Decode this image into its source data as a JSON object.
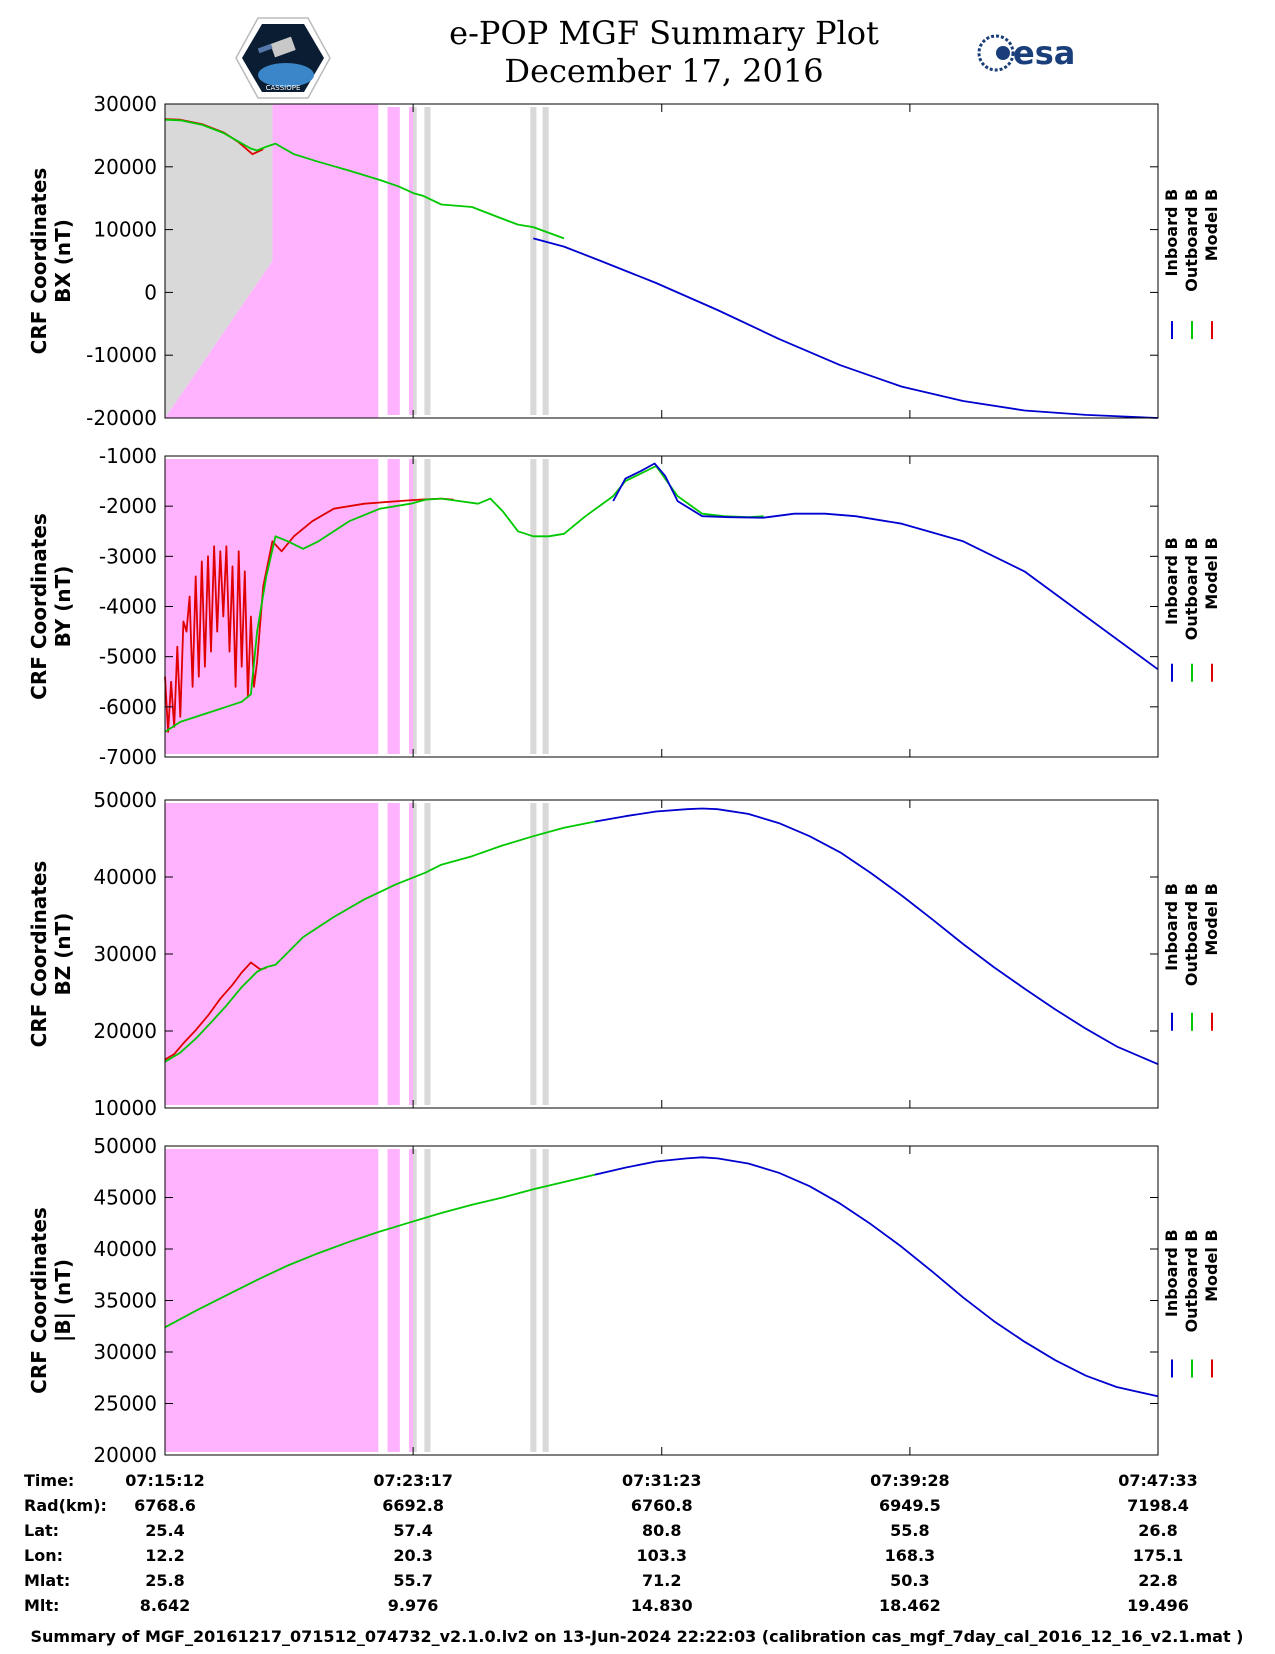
{
  "header": {
    "title_line1": "e-POP MGF Summary Plot",
    "title_line2": "December 17, 2016",
    "logo_left": "CASSIOPE",
    "logo_right": "esa"
  },
  "colors": {
    "inboard": "#0000d0",
    "outboard": "#00c800",
    "model": "#e00000",
    "shade_pink": "#ffb3ff",
    "shade_gray": "#d9d9d9"
  },
  "chart_data": [
    {
      "type": "line",
      "ylabel_line1": "CRF Coordinates",
      "ylabel_line2": "BX (nT)",
      "ylim": [
        -20000,
        30000
      ],
      "yticks": [
        "-20000",
        "-10000",
        "0",
        "10000",
        "20000",
        "30000"
      ],
      "yticks_values": [
        -20000,
        -10000,
        0,
        10000,
        20000,
        30000
      ],
      "legend": [
        "Inboard B",
        "Outboard B",
        "Model B"
      ],
      "series": [
        {
          "name": "Model B",
          "x": [
            0,
            0.5,
            1.2,
            1.9,
            2.4,
            2.85,
            3.2
          ],
          "y": [
            27600,
            27500,
            26800,
            25500,
            23900,
            22000,
            22800
          ]
        },
        {
          "name": "Outboard B",
          "x": [
            0,
            0.5,
            1.2,
            1.9,
            2.4,
            2.8,
            3.0,
            3.3,
            3.6,
            4.2,
            5.0,
            6.0,
            7.0,
            7.6,
            8.1,
            8.4,
            9.0,
            10.0,
            11.0,
            11.5,
            12.0,
            13.0
          ],
          "y": [
            27500,
            27400,
            26700,
            25400,
            24000,
            22900,
            22600,
            23200,
            23700,
            22000,
            20800,
            19400,
            17900,
            16900,
            15800,
            15400,
            14000,
            13600,
            11700,
            10800,
            10400,
            8600
          ]
        },
        {
          "name": "Inboard B",
          "x": [
            12.0,
            13.0,
            14.2,
            16.0,
            18.0,
            20.0,
            22.0,
            24.0,
            26.0,
            28.0,
            30.0,
            32.34
          ],
          "y": [
            8600,
            7300,
            5000,
            1500,
            -2800,
            -7400,
            -11600,
            -15000,
            -17300,
            -18800,
            -19500,
            -20000
          ]
        }
      ],
      "shading": "bx"
    },
    {
      "type": "line",
      "ylabel_line1": "CRF Coordinates",
      "ylabel_line2": "BY (nT)",
      "ylim": [
        -7000,
        -1000
      ],
      "yticks": [
        "-7000",
        "-6000",
        "-5000",
        "-4000",
        "-3000",
        "-2000",
        "-1000"
      ],
      "yticks_values": [
        -7000,
        -6000,
        -5000,
        -4000,
        -3000,
        -2000,
        -1000
      ],
      "legend": [
        "Inboard B",
        "Outboard B",
        "Model B"
      ],
      "series": [
        {
          "name": "Model B",
          "x": [
            0,
            0.1,
            0.2,
            0.3,
            0.4,
            0.5,
            0.6,
            0.7,
            0.8,
            0.9,
            1.0,
            1.1,
            1.2,
            1.3,
            1.4,
            1.5,
            1.6,
            1.7,
            1.8,
            1.9,
            2.0,
            2.1,
            2.2,
            2.3,
            2.4,
            2.5,
            2.6,
            2.7,
            2.8,
            2.9,
            3.0,
            3.2,
            3.5,
            3.8,
            4.2,
            4.8,
            5.5,
            6.5,
            7.6,
            8.3,
            9.0,
            9.4
          ],
          "y": [
            -5400,
            -6500,
            -5500,
            -6400,
            -4800,
            -6200,
            -4300,
            -4500,
            -3800,
            -5600,
            -3400,
            -5400,
            -3100,
            -5200,
            -3000,
            -4900,
            -2800,
            -4500,
            -2900,
            -4200,
            -2800,
            -4900,
            -3200,
            -5600,
            -2900,
            -5200,
            -3300,
            -5800,
            -4200,
            -5600,
            -5100,
            -3600,
            -2700,
            -2900,
            -2600,
            -2300,
            -2050,
            -1950,
            -1900,
            -1870,
            -1850,
            -1870
          ]
        },
        {
          "name": "Outboard B",
          "x": [
            0,
            0.5,
            1.0,
            1.5,
            2.0,
            2.5,
            2.8,
            3.0,
            3.3,
            3.6,
            4.0,
            4.5,
            5.0,
            6.0,
            7.0,
            8.0,
            8.5,
            9.0,
            9.6,
            10.2,
            10.6,
            11.0,
            11.5,
            12.0,
            12.5,
            13.0,
            13.7,
            14.6,
            15.0,
            15.5,
            16.0,
            16.7,
            17.5,
            18.2,
            19.0,
            19.5
          ],
          "y": [
            -6500,
            -6300,
            -6200,
            -6100,
            -6000,
            -5900,
            -5750,
            -4500,
            -3400,
            -2600,
            -2700,
            -2850,
            -2700,
            -2300,
            -2050,
            -1950,
            -1870,
            -1850,
            -1900,
            -1950,
            -1850,
            -2100,
            -2500,
            -2600,
            -2600,
            -2550,
            -2200,
            -1800,
            -1500,
            -1350,
            -1200,
            -1800,
            -2150,
            -2200,
            -2220,
            -2200
          ]
        },
        {
          "name": "Inboard B",
          "x": [
            14.6,
            15.0,
            15.5,
            15.95,
            16.3,
            16.7,
            17.5,
            18.4,
            19.5,
            20.5,
            21.5,
            22.5,
            24.0,
            26.0,
            28.0,
            30.0,
            32.34
          ],
          "y": [
            -1900,
            -1450,
            -1300,
            -1150,
            -1400,
            -1900,
            -2200,
            -2220,
            -2230,
            -2150,
            -2150,
            -2200,
            -2350,
            -2700,
            -3300,
            -4200,
            -5250
          ]
        }
      ],
      "shading": "standard"
    },
    {
      "type": "line",
      "ylabel_line1": "CRF Coordinates",
      "ylabel_line2": "BZ (nT)",
      "ylim": [
        10000,
        50000
      ],
      "yticks": [
        "10000",
        "20000",
        "30000",
        "40000",
        "50000"
      ],
      "yticks_values": [
        10000,
        20000,
        30000,
        40000,
        50000
      ],
      "legend": [
        "Inboard B",
        "Outboard B",
        "Model B"
      ],
      "series": [
        {
          "name": "Model B",
          "x": [
            0,
            0.3,
            0.6,
            1.0,
            1.4,
            1.8,
            2.2,
            2.5,
            2.8,
            3.1,
            3.3
          ],
          "y": [
            16300,
            17000,
            18400,
            20100,
            22000,
            24200,
            26000,
            27600,
            28900,
            28000,
            28200
          ]
        },
        {
          "name": "Outboard B",
          "x": [
            0,
            0.5,
            1.0,
            1.5,
            2.0,
            2.5,
            3.0,
            3.3,
            3.6,
            4.0,
            4.5,
            5.5,
            6.5,
            7.5,
            8.5,
            9.0,
            10.0,
            11.0,
            12.0,
            13.0,
            14.0
          ],
          "y": [
            16000,
            17200,
            19000,
            21100,
            23300,
            25700,
            27700,
            28300,
            28600,
            30200,
            32200,
            34800,
            37100,
            39000,
            40600,
            41600,
            42700,
            44100,
            45300,
            46400,
            47200
          ]
        },
        {
          "name": "Inboard B",
          "x": [
            14.0,
            15.0,
            16.0,
            17.0,
            17.5,
            18.0,
            19.0,
            20.0,
            21.0,
            22.0,
            23.0,
            24.0,
            25.0,
            26.0,
            27.0,
            28.0,
            29.0,
            30.0,
            31.0,
            32.34
          ],
          "y": [
            47200,
            47900,
            48500,
            48800,
            48900,
            48800,
            48200,
            47000,
            45300,
            43200,
            40500,
            37600,
            34500,
            31300,
            28300,
            25500,
            22800,
            20300,
            18000,
            15700
          ]
        }
      ],
      "shading": "standard"
    },
    {
      "type": "line",
      "ylabel_line1": "CRF Coordinates",
      "ylabel_line2": "|B| (nT)",
      "ylim": [
        20000,
        50000
      ],
      "yticks": [
        "20000",
        "25000",
        "30000",
        "35000",
        "40000",
        "45000",
        "50000"
      ],
      "yticks_values": [
        20000,
        25000,
        30000,
        35000,
        40000,
        45000,
        50000
      ],
      "legend": [
        "Inboard B",
        "Outboard B",
        "Model B"
      ],
      "series": [
        {
          "name": "Outboard B",
          "x": [
            0,
            1.0,
            2.0,
            3.0,
            4.0,
            5.0,
            6.0,
            7.0,
            8.0,
            9.0,
            10.0,
            11.0,
            12.0,
            13.0,
            14.0
          ],
          "y": [
            32400,
            34000,
            35500,
            37000,
            38400,
            39600,
            40700,
            41700,
            42600,
            43500,
            44300,
            45000,
            45800,
            46500,
            47200
          ]
        },
        {
          "name": "Inboard B",
          "x": [
            14.0,
            15.0,
            16.0,
            17.0,
            17.5,
            18.0,
            19.0,
            20.0,
            21.0,
            22.0,
            23.0,
            24.0,
            25.0,
            26.0,
            27.0,
            28.0,
            29.0,
            30.0,
            31.0,
            32.34
          ],
          "y": [
            47200,
            47900,
            48500,
            48800,
            48900,
            48800,
            48300,
            47400,
            46100,
            44400,
            42400,
            40200,
            37800,
            35300,
            33000,
            31000,
            29200,
            27700,
            26600,
            25700
          ]
        }
      ],
      "shading": "standard"
    }
  ],
  "x_axis": {
    "xlim": [
      0,
      32.35
    ],
    "ticks_min": [
      0,
      8.083,
      16.183,
      24.267,
      32.35
    ]
  },
  "ephemeris": {
    "labels": [
      "Time:",
      "Rad(km):",
      "Lat:",
      "Lon:",
      "Mlat:",
      "Mlt:"
    ],
    "columns": [
      [
        "07:15:12",
        "6768.6",
        "25.4",
        "12.2",
        "25.8",
        "8.642"
      ],
      [
        "07:23:17",
        "6692.8",
        "57.4",
        "20.3",
        "55.7",
        "9.976"
      ],
      [
        "07:31:23",
        "6760.8",
        "80.8",
        "103.3",
        "71.2",
        "14.830"
      ],
      [
        "07:39:28",
        "6949.5",
        "55.8",
        "168.3",
        "50.3",
        "18.462"
      ],
      [
        "07:47:33",
        "7198.4",
        "26.8",
        "175.1",
        "22.8",
        "19.496"
      ]
    ]
  },
  "footer": "Summary of MGF_20161217_071512_074732_v2.1.0.lv2 on 13-Jun-2024 22:22:03 (calibration cas_mgf_7day_cal_2016_12_16_v2.1.mat )"
}
